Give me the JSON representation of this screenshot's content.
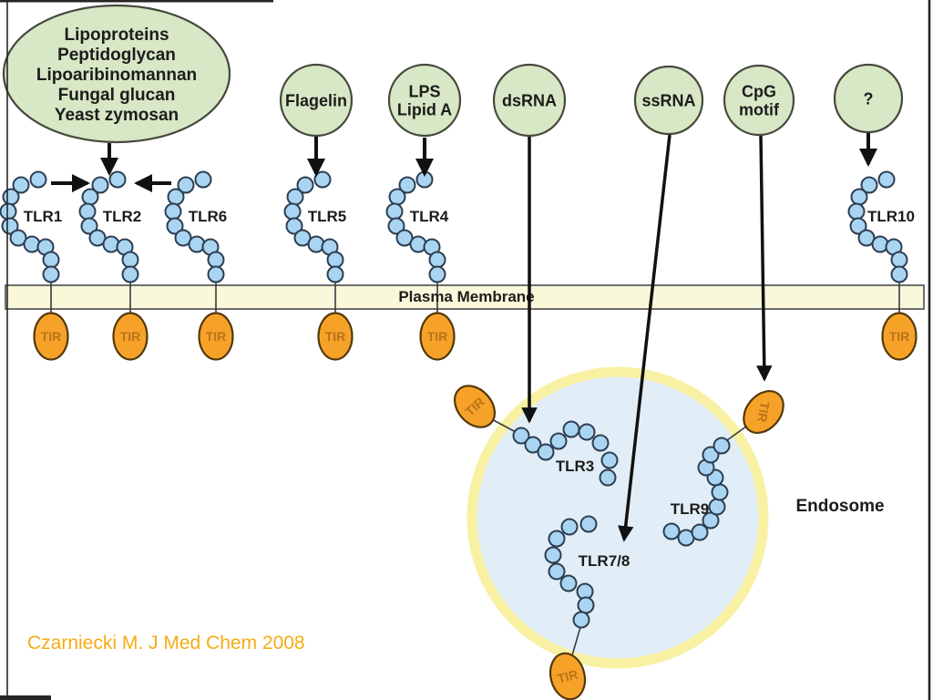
{
  "slide": {
    "citation": "Czarniecki M. J Med Chem 2008",
    "membrane_label": "Plasma Membrane",
    "endosome_label": "Endosome",
    "tir_label": "TIR",
    "colors": {
      "ligand_fill": "#d8e7c5",
      "ligand_stroke": "#45493c",
      "bead_fill": "#a9d5f2",
      "bead_stroke": "#2e3e52",
      "membrane_fill": "#faf8da",
      "membrane_stroke": "#6e6e6e",
      "tir_fill": "#f6a229",
      "tir_stroke": "#53380b",
      "tir_text": "#b9731a",
      "endosome_fill": "#e2eef7",
      "endosome_ring": "#f8f1a3",
      "arrow": "#111111",
      "label": "#1c1c1c",
      "citation": "#f5ac15",
      "edge": "#262626"
    },
    "ligands": [
      {
        "id": "pamp-cluster",
        "lines": [
          "Lipoproteins",
          "Peptidoglycan",
          "Lipoaribinomannan",
          "Fungal glucan",
          "Yeast zymosan"
        ],
        "target": "TLR2"
      },
      {
        "id": "flagelin",
        "lines": [
          "Flagelin"
        ],
        "target": "TLR5"
      },
      {
        "id": "lps",
        "lines": [
          "LPS",
          "Lipid A"
        ],
        "target": "TLR4"
      },
      {
        "id": "dsrna",
        "lines": [
          "dsRNA"
        ],
        "target": "TLR3"
      },
      {
        "id": "ssrna",
        "lines": [
          "ssRNA"
        ],
        "target": "TLR7/8"
      },
      {
        "id": "cpg",
        "lines": [
          "CpG",
          "motif"
        ],
        "target": "TLR9"
      },
      {
        "id": "unknown",
        "lines": [
          "?"
        ],
        "target": "TLR10"
      }
    ],
    "membrane_receptors": [
      {
        "label": "TLR1"
      },
      {
        "label": "TLR2"
      },
      {
        "label": "TLR6"
      },
      {
        "label": "TLR5"
      },
      {
        "label": "TLR4"
      },
      {
        "label": "TLR10"
      }
    ],
    "endosome_receptors": [
      {
        "label": "TLR3"
      },
      {
        "label": "TLR7/8"
      },
      {
        "label": "TLR9"
      }
    ]
  }
}
